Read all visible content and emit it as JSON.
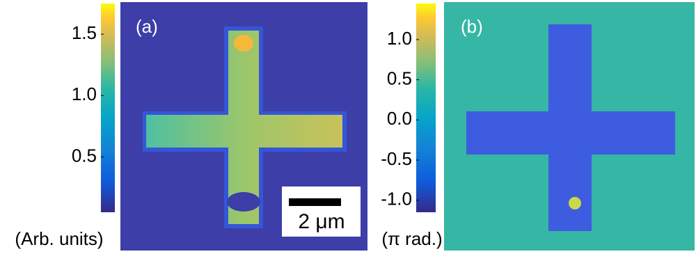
{
  "panels": [
    {
      "label": "(a)",
      "colorbar": {
        "unit": "(Arb. units)",
        "lim": [
          0.05,
          1.75
        ],
        "ticks": [
          0.5,
          {
            "value": 1,
            "label": "1.0"
          },
          1.5
        ]
      },
      "scale_bar": "2 μm"
    },
    {
      "label": "(b)",
      "colorbar": {
        "unit": "(π rad.)",
        "lim": [
          -1.15,
          1.45
        ],
        "ticks": [
          {
            "value": -1,
            "label": "-1.0"
          },
          -0.5,
          {
            "value": 0,
            "label": "0.0"
          },
          0.5,
          {
            "value": 1,
            "label": "1.0"
          }
        ]
      }
    }
  ]
}
